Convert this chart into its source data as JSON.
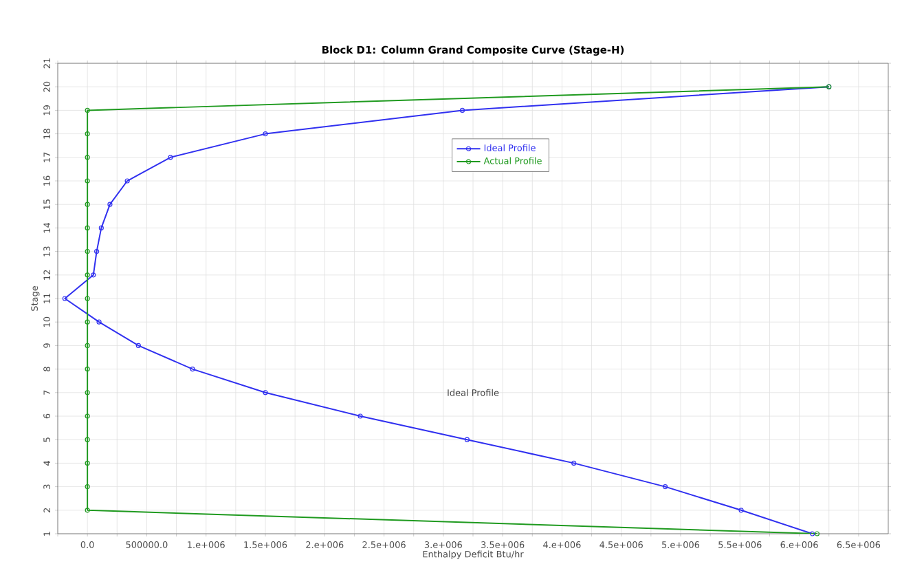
{
  "chart_data": {
    "type": "line",
    "title": "Block D1: Column Grand Composite Curve (Stage-H)",
    "xlabel": "Enthalpy Deficit Btu/hr",
    "ylabel": "Stage",
    "xlim": [
      -250000,
      6750000
    ],
    "ylim": [
      1,
      21
    ],
    "xticks": [
      {
        "value": -250000,
        "label": null
      },
      {
        "value": 0,
        "label": "0.0"
      },
      {
        "value": 250000,
        "label": null
      },
      {
        "value": 500000,
        "label": "500000.0"
      },
      {
        "value": 750000,
        "label": null
      },
      {
        "value": 1000000,
        "label": "1.e+006"
      },
      {
        "value": 1250000,
        "label": null
      },
      {
        "value": 1500000,
        "label": "1.5e+006"
      },
      {
        "value": 1750000,
        "label": null
      },
      {
        "value": 2000000,
        "label": "2.e+006"
      },
      {
        "value": 2250000,
        "label": null
      },
      {
        "value": 2500000,
        "label": "2.5e+006"
      },
      {
        "value": 2750000,
        "label": null
      },
      {
        "value": 3000000,
        "label": "3.e+006"
      },
      {
        "value": 3250000,
        "label": null
      },
      {
        "value": 3500000,
        "label": "3.5e+006"
      },
      {
        "value": 3750000,
        "label": null
      },
      {
        "value": 4000000,
        "label": "4.e+006"
      },
      {
        "value": 4250000,
        "label": null
      },
      {
        "value": 4500000,
        "label": "4.5e+006"
      },
      {
        "value": 4750000,
        "label": null
      },
      {
        "value": 5000000,
        "label": "5.e+006"
      },
      {
        "value": 5250000,
        "label": null
      },
      {
        "value": 5500000,
        "label": "5.5e+006"
      },
      {
        "value": 5750000,
        "label": null
      },
      {
        "value": 6000000,
        "label": "6.e+006"
      },
      {
        "value": 6250000,
        "label": null
      },
      {
        "value": 6500000,
        "label": "6.5e+006"
      }
    ],
    "yticks": [
      1,
      2,
      3,
      4,
      5,
      6,
      7,
      8,
      9,
      10,
      11,
      12,
      13,
      14,
      15,
      16,
      17,
      18,
      19,
      20,
      21
    ],
    "grid": true,
    "legend": "top",
    "marker": "circle",
    "line_style": "solid",
    "series": [
      {
        "name": "Ideal Profile",
        "color": "#3030f0",
        "x": [
          6110000,
          5510000,
          4870000,
          4100000,
          3200000,
          2300000,
          1500000,
          886000,
          430000,
          98000,
          -190000,
          50000,
          78000,
          117000,
          190000,
          336000,
          700000,
          1500000,
          3160000,
          6250000
        ],
        "values": [
          1,
          2,
          3,
          4,
          5,
          6,
          7,
          8,
          9,
          10,
          11,
          12,
          13,
          14,
          15,
          16,
          17,
          18,
          19,
          20
        ]
      },
      {
        "name": "Actual Profile",
        "color": "#1f9a1f",
        "x": [
          6150000,
          0,
          0,
          0,
          0,
          0,
          0,
          0,
          0,
          0,
          0,
          0,
          0,
          0,
          0,
          0,
          0,
          0,
          0,
          6250000
        ],
        "values": [
          1,
          2,
          3,
          4,
          5,
          6,
          7,
          8,
          9,
          10,
          11,
          12,
          13,
          14,
          15,
          16,
          17,
          18,
          19,
          20
        ]
      }
    ],
    "annotations": [
      "Ideal Profile"
    ]
  }
}
